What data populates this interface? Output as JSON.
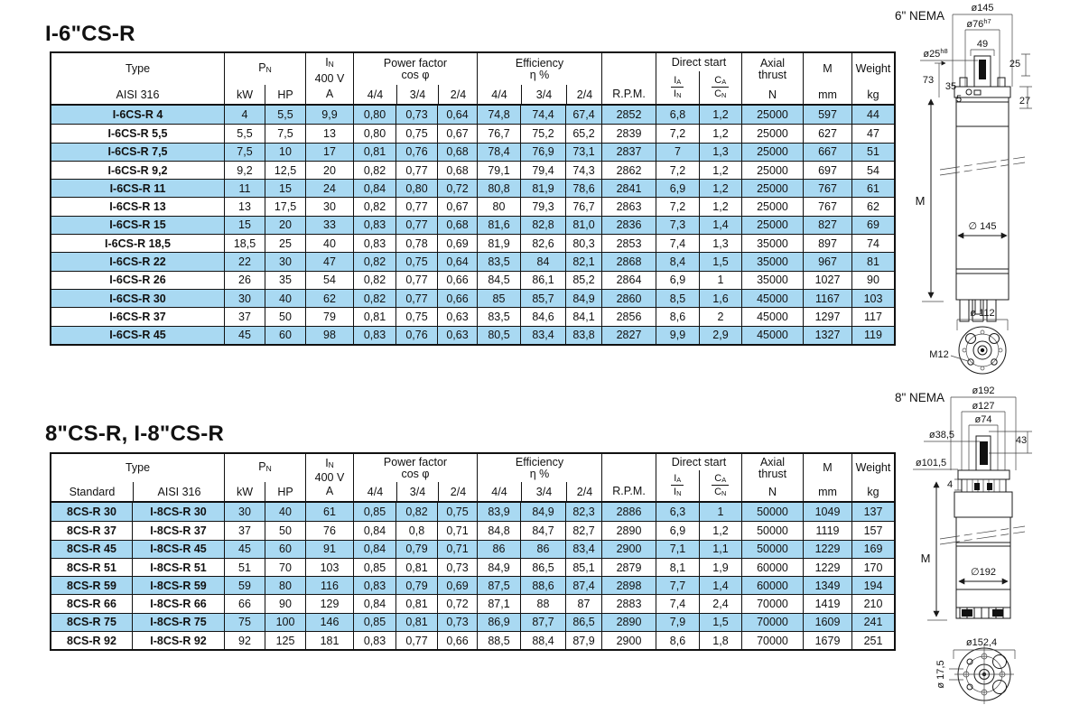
{
  "colors": {
    "row_highlight": "#a9d9f2",
    "border": "#111111"
  },
  "table1": {
    "title": "I-6\"CS-R",
    "header": {
      "type": "Type",
      "type_sub": "AISI 316",
      "pn_main": "P",
      "pn_sub": "N",
      "kw": "kW",
      "hp": "HP",
      "in_main": "I",
      "in_sub": "N",
      "in_volt": "400 V",
      "in_unit": "A",
      "pf1": "Power factor",
      "pf2": "cos φ",
      "eff1": "Efficiency",
      "eff2": "η %",
      "f44": "4/4",
      "f34": "3/4",
      "f24": "2/4",
      "rpm": "R.P.M.",
      "ds": "Direct start",
      "ia_top_main": "I",
      "ia_top_sub": "A",
      "ia_bot_main": "I",
      "ia_bot_sub": "N",
      "ca_top_main": "C",
      "ca_top_sub": "A",
      "ca_bot_main": "C",
      "ca_bot_sub": "N",
      "axial1": "Axial",
      "axial2": "thrust",
      "axial_unit": "N",
      "m": "M",
      "m_unit": "mm",
      "weight": "Weight",
      "weight_unit": "kg"
    },
    "rows": [
      {
        "highlight": true,
        "cells": [
          "I-6CS-R 4",
          "4",
          "5,5",
          "9,9",
          "0,80",
          "0,73",
          "0,64",
          "74,8",
          "74,4",
          "67,4",
          "2852",
          "6,8",
          "1,2",
          "25000",
          "597",
          "44"
        ]
      },
      {
        "highlight": false,
        "cells": [
          "I-6CS-R 5,5",
          "5,5",
          "7,5",
          "13",
          "0,80",
          "0,75",
          "0,67",
          "76,7",
          "75,2",
          "65,2",
          "2839",
          "7,2",
          "1,2",
          "25000",
          "627",
          "47"
        ]
      },
      {
        "highlight": true,
        "cells": [
          "I-6CS-R 7,5",
          "7,5",
          "10",
          "17",
          "0,81",
          "0,76",
          "0,68",
          "78,4",
          "76,9",
          "73,1",
          "2837",
          "7",
          "1,3",
          "25000",
          "667",
          "51"
        ]
      },
      {
        "highlight": false,
        "cells": [
          "I-6CS-R 9,2",
          "9,2",
          "12,5",
          "20",
          "0,82",
          "0,77",
          "0,68",
          "79,1",
          "79,4",
          "74,3",
          "2862",
          "7,2",
          "1,2",
          "25000",
          "697",
          "54"
        ]
      },
      {
        "highlight": true,
        "cells": [
          "I-6CS-R 11",
          "11",
          "15",
          "24",
          "0,84",
          "0,80",
          "0,72",
          "80,8",
          "81,9",
          "78,6",
          "2841",
          "6,9",
          "1,2",
          "25000",
          "767",
          "61"
        ]
      },
      {
        "highlight": false,
        "cells": [
          "I-6CS-R 13",
          "13",
          "17,5",
          "30",
          "0,82",
          "0,77",
          "0,67",
          "80",
          "79,3",
          "76,7",
          "2863",
          "7,2",
          "1,2",
          "25000",
          "767",
          "62"
        ]
      },
      {
        "highlight": true,
        "cells": [
          "I-6CS-R 15",
          "15",
          "20",
          "33",
          "0,83",
          "0,77",
          "0,68",
          "81,6",
          "82,8",
          "81,0",
          "2836",
          "7,3",
          "1,4",
          "25000",
          "827",
          "69"
        ]
      },
      {
        "highlight": false,
        "cells": [
          "I-6CS-R 18,5",
          "18,5",
          "25",
          "40",
          "0,83",
          "0,78",
          "0,69",
          "81,9",
          "82,6",
          "80,3",
          "2853",
          "7,4",
          "1,3",
          "35000",
          "897",
          "74"
        ]
      },
      {
        "highlight": true,
        "cells": [
          "I-6CS-R 22",
          "22",
          "30",
          "47",
          "0,82",
          "0,75",
          "0,64",
          "83,5",
          "84",
          "82,1",
          "2868",
          "8,4",
          "1,5",
          "35000",
          "967",
          "81"
        ]
      },
      {
        "highlight": false,
        "cells": [
          "I-6CS-R 26",
          "26",
          "35",
          "54",
          "0,82",
          "0,77",
          "0,66",
          "84,5",
          "86,1",
          "85,2",
          "2864",
          "6,9",
          "1",
          "35000",
          "1027",
          "90"
        ]
      },
      {
        "highlight": true,
        "cells": [
          "I-6CS-R 30",
          "30",
          "40",
          "62",
          "0,82",
          "0,77",
          "0,66",
          "85",
          "85,7",
          "84,9",
          "2860",
          "8,5",
          "1,6",
          "45000",
          "1167",
          "103"
        ]
      },
      {
        "highlight": false,
        "cells": [
          "I-6CS-R 37",
          "37",
          "50",
          "79",
          "0,81",
          "0,75",
          "0,63",
          "83,5",
          "84,6",
          "84,1",
          "2856",
          "8,6",
          "2",
          "45000",
          "1297",
          "117"
        ]
      },
      {
        "highlight": true,
        "cells": [
          "I-6CS-R 45",
          "45",
          "60",
          "98",
          "0,83",
          "0,76",
          "0,63",
          "80,5",
          "83,4",
          "83,8",
          "2827",
          "9,9",
          "2,9",
          "45000",
          "1327",
          "119"
        ]
      }
    ]
  },
  "table2": {
    "title": "8\"CS-R, I-8\"CS-R",
    "header": {
      "type": "Type",
      "standard": "Standard",
      "aisi": "AISI 316",
      "pn_main": "P",
      "pn_sub": "N",
      "kw": "kW",
      "hp": "HP",
      "in_main": "I",
      "in_sub": "N",
      "in_volt": "400 V",
      "in_unit": "A",
      "pf1": "Power factor",
      "pf2": "cos φ",
      "eff1": "Efficiency",
      "eff2": "η %",
      "f44": "4/4",
      "f34": "3/4",
      "f24": "2/4",
      "rpm": "R.P.M.",
      "ds": "Direct start",
      "ia_top_main": "I",
      "ia_top_sub": "A",
      "ia_bot_main": "I",
      "ia_bot_sub": "N",
      "ca_top_main": "C",
      "ca_top_sub": "A",
      "ca_bot_main": "C",
      "ca_bot_sub": "N",
      "axial1": "Axial",
      "axial2": "thrust",
      "axial_unit": "N",
      "m": "M",
      "m_unit": "mm",
      "weight": "Weight",
      "weight_unit": "kg"
    },
    "rows": [
      {
        "highlight": true,
        "cells": [
          "8CS-R 30",
          "I-8CS-R 30",
          "30",
          "40",
          "61",
          "0,85",
          "0,82",
          "0,75",
          "83,9",
          "84,9",
          "82,3",
          "2886",
          "6,3",
          "1",
          "50000",
          "1049",
          "137"
        ]
      },
      {
        "highlight": false,
        "cells": [
          "8CS-R 37",
          "I-8CS-R 37",
          "37",
          "50",
          "76",
          "0,84",
          "0,8",
          "0,71",
          "84,8",
          "84,7",
          "82,7",
          "2890",
          "6,9",
          "1,2",
          "50000",
          "1119",
          "157"
        ]
      },
      {
        "highlight": true,
        "cells": [
          "8CS-R 45",
          "I-8CS-R 45",
          "45",
          "60",
          "91",
          "0,84",
          "0,79",
          "0,71",
          "86",
          "86",
          "83,4",
          "2900",
          "7,1",
          "1,1",
          "50000",
          "1229",
          "169"
        ]
      },
      {
        "highlight": false,
        "cells": [
          "8CS-R 51",
          "I-8CS-R 51",
          "51",
          "70",
          "103",
          "0,85",
          "0,81",
          "0,73",
          "84,9",
          "86,5",
          "85,1",
          "2879",
          "8,1",
          "1,9",
          "60000",
          "1229",
          "170"
        ]
      },
      {
        "highlight": true,
        "cells": [
          "8CS-R 59",
          "I-8CS-R 59",
          "59",
          "80",
          "116",
          "0,83",
          "0,79",
          "0,69",
          "87,5",
          "88,6",
          "87,4",
          "2898",
          "7,7",
          "1,4",
          "60000",
          "1349",
          "194"
        ]
      },
      {
        "highlight": false,
        "cells": [
          "8CS-R 66",
          "I-8CS-R 66",
          "66",
          "90",
          "129",
          "0,84",
          "0,81",
          "0,72",
          "87,1",
          "88",
          "87",
          "2883",
          "7,4",
          "2,4",
          "70000",
          "1419",
          "210"
        ]
      },
      {
        "highlight": true,
        "cells": [
          "8CS-R 75",
          "I-8CS-R 75",
          "75",
          "100",
          "146",
          "0,85",
          "0,81",
          "0,73",
          "86,9",
          "87,7",
          "86,5",
          "2890",
          "7,9",
          "1,5",
          "70000",
          "1609",
          "241"
        ]
      },
      {
        "highlight": false,
        "cells": [
          "8CS-R 92",
          "I-8CS-R 92",
          "92",
          "125",
          "181",
          "0,83",
          "0,77",
          "0,66",
          "88,5",
          "88,4",
          "87,9",
          "2900",
          "8,6",
          "1,8",
          "70000",
          "1679",
          "251"
        ]
      }
    ]
  },
  "drawing6": {
    "nema": "6\" NEMA",
    "d145": "ø145",
    "d76": "ø76",
    "d76sup": "h7",
    "d49": "49",
    "d25": "ø25",
    "d25sup": "h8",
    "n25": "25",
    "n73": "73",
    "n35": "35",
    "n5": "5",
    "n27": "27",
    "m": "M",
    "body_d": "∅ 145",
    "bottom_d": "ø 112",
    "m12": "M12"
  },
  "drawing8": {
    "nema": "8\" NEMA",
    "d192": "ø192",
    "d127": "ø127",
    "d74": "ø74",
    "d385": "ø38,5",
    "n43": "43",
    "d1015": "ø101,5",
    "n4": "4",
    "m": "M",
    "body_d": "∅192",
    "bottom_d": "ø152,4",
    "d175": "ø 17,5"
  }
}
